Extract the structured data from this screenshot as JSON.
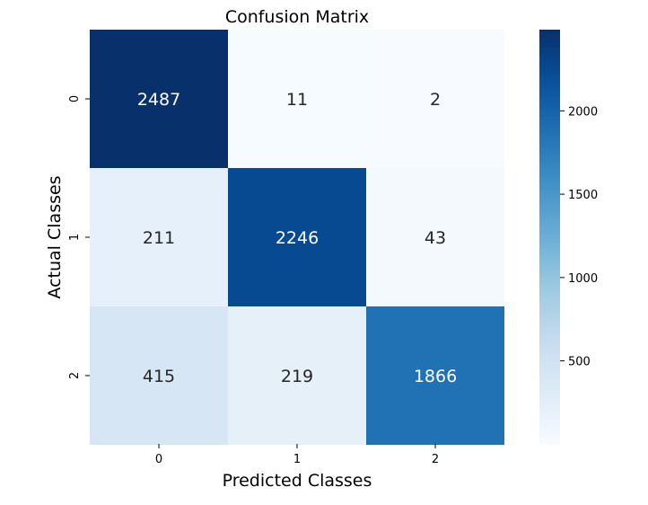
{
  "chart_data": {
    "type": "heatmap",
    "title": "Confusion Matrix",
    "xlabel": "Predicted Classes",
    "ylabel": "Actual Classes",
    "x_categories": [
      "0",
      "1",
      "2"
    ],
    "y_categories": [
      "0",
      "1",
      "2"
    ],
    "values": [
      [
        2487,
        11,
        2
      ],
      [
        211,
        2246,
        43
      ],
      [
        415,
        219,
        1866
      ]
    ],
    "colormap": "Blues",
    "colorbar": {
      "min": 2,
      "max": 2487,
      "ticks": [
        500,
        1000,
        1500,
        2000
      ],
      "tick_labels": [
        "500",
        "1000",
        "1500",
        "2000"
      ]
    },
    "colors": {
      "low": "#f7fbff",
      "high": "#08306b",
      "text_light": "#ffffff",
      "text_dark": "#262626"
    }
  }
}
